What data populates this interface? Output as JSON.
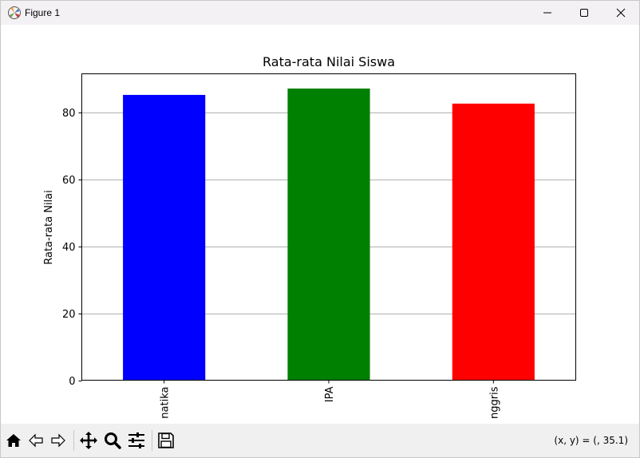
{
  "window": {
    "title": "Figure 1"
  },
  "toolbar": {
    "coords_text": "(x, y) = (, 35.1)",
    "tools": [
      "home-icon",
      "back-icon",
      "forward-icon",
      "pan-icon",
      "zoom-icon",
      "configure-subplots-icon",
      "save-icon"
    ]
  },
  "chart_data": {
    "type": "bar",
    "title": "Rata-rata Nilai Siswa",
    "xlabel": "",
    "ylabel": "Rata-rata Nilai",
    "categories": [
      "natika",
      "IPA",
      "nggris"
    ],
    "values": [
      85.2,
      87.1,
      82.6
    ],
    "colors": [
      "#0000ff",
      "#008000",
      "#ff0000"
    ],
    "ylim": [
      0,
      91.5
    ],
    "yticks": [
      0,
      20,
      40,
      60,
      80
    ],
    "ytick_labels": [
      "0",
      "20",
      "40",
      "60",
      "80"
    ],
    "grid": "horizontal",
    "legend": "none"
  }
}
